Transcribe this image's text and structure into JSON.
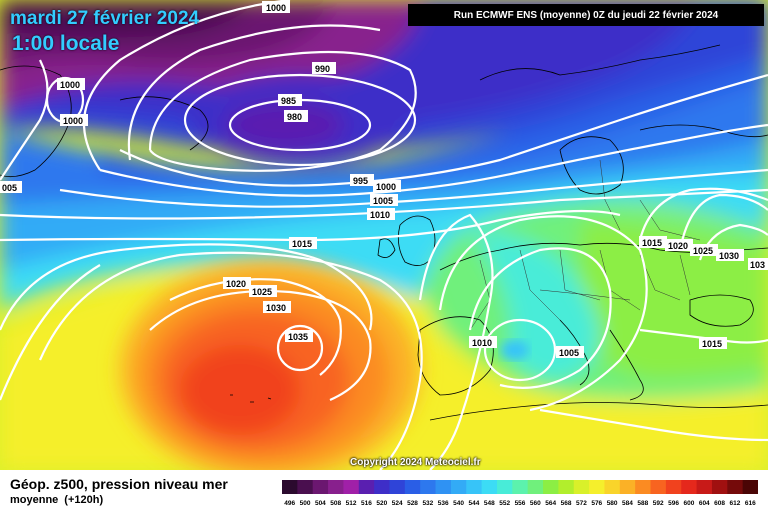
{
  "header": {
    "date": "mardi 27 février 2024",
    "time": "1:00 locale",
    "run": "Run ECMWF ENS (moyenne) 0Z du jeudi 22 février 2024"
  },
  "copyright": "Copyright 2024 Meteociel.fr",
  "legend": {
    "title": "Géop. z500, pression niveau mer",
    "subtitle": "moyenne",
    "hours": "(+120h)",
    "ticks": [
      "496",
      "500",
      "504",
      "508",
      "512",
      "516",
      "520",
      "524",
      "528",
      "532",
      "536",
      "540",
      "544",
      "548",
      "552",
      "556",
      "560",
      "564",
      "568",
      "572",
      "576",
      "580",
      "584",
      "588",
      "592",
      "596",
      "600",
      "604",
      "608",
      "612",
      "616"
    ],
    "colors": [
      "#2b0a2e",
      "#4a0f4f",
      "#6b1770",
      "#88208d",
      "#a020a8",
      "#5a1fb0",
      "#3e2ec8",
      "#2f44d8",
      "#2a5ee6",
      "#2d78ee",
      "#2f92f3",
      "#33abf6",
      "#37c4f8",
      "#3cdcf5",
      "#48ecd8",
      "#5cf2ad",
      "#70f07c",
      "#8cee44",
      "#b2ee2c",
      "#d9f02a",
      "#f5ef2c",
      "#f9d42a",
      "#fbb126",
      "#fb8b22",
      "#f86420",
      "#f1421e",
      "#e5281c",
      "#c81a18",
      "#a01010",
      "#750a0a",
      "#4a0505"
    ]
  },
  "isobars": [
    {
      "label": "1000"
    },
    {
      "label": "990"
    },
    {
      "label": "985"
    },
    {
      "label": "980"
    },
    {
      "label": "1000"
    },
    {
      "label": "1000"
    },
    {
      "label": "005"
    },
    {
      "label": "995"
    },
    {
      "label": "1000"
    },
    {
      "label": "1005"
    },
    {
      "label": "1010"
    },
    {
      "label": "1015"
    },
    {
      "label": "1020"
    },
    {
      "label": "1025"
    },
    {
      "label": "1030"
    },
    {
      "label": "1035"
    },
    {
      "label": "1010"
    },
    {
      "label": "1005"
    },
    {
      "label": "1015"
    },
    {
      "label": "1020"
    },
    {
      "label": "1025"
    },
    {
      "label": "1030"
    },
    {
      "label": "103"
    },
    {
      "label": "1015"
    }
  ]
}
